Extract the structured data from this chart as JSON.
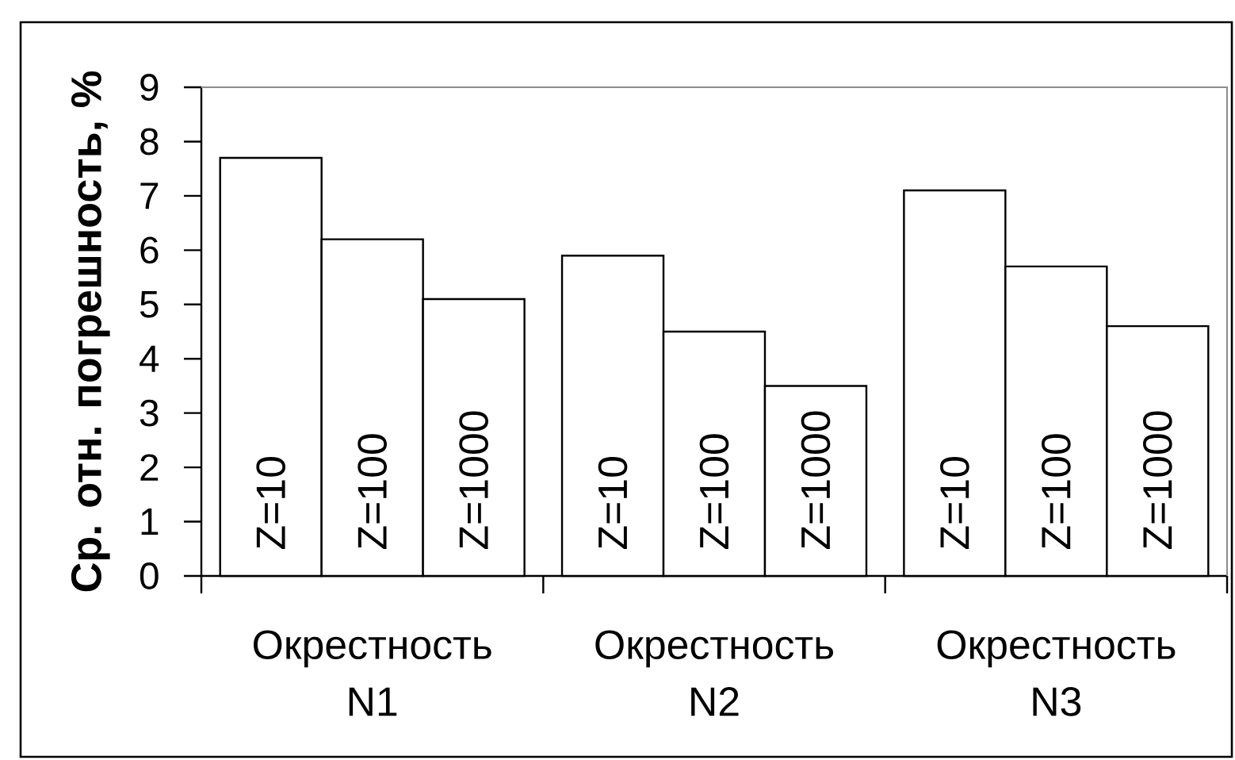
{
  "chart_data": {
    "type": "bar",
    "ylabel": "Ср. отн. погрешность, %",
    "categories": [
      "Окрестность N1",
      "Окрестность N2",
      "Окрестность N3"
    ],
    "series": [
      {
        "name": "Z=10",
        "color": "#ffffff",
        "values": [
          7.7,
          5.9,
          7.1
        ]
      },
      {
        "name": "Z=100",
        "color": "#ffffff",
        "values": [
          6.2,
          4.5,
          5.7
        ]
      },
      {
        "name": "Z=1000",
        "color": "#ffffff",
        "values": [
          5.1,
          3.5,
          4.6
        ]
      }
    ],
    "ylim": [
      0,
      9
    ],
    "yticks": [
      0,
      1,
      2,
      3,
      4,
      5,
      6,
      7,
      8,
      9
    ]
  }
}
